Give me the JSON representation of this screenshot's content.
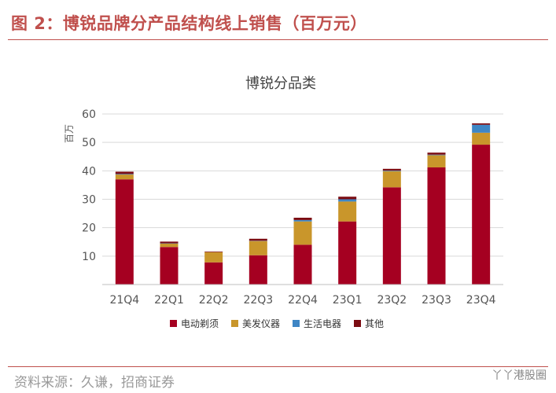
{
  "figure": {
    "title": "图 2：博锐品牌分产品结构线上销售（百万元）",
    "source": "资料来源：久谦，招商证券",
    "watermark": "丫丫港股圈"
  },
  "colors": {
    "accent": "#c0504d",
    "series": [
      "#a50021",
      "#c9962b",
      "#3e86c5",
      "#7b0c12"
    ]
  },
  "chart_data": {
    "type": "bar",
    "stacked": true,
    "title": "博锐分品类",
    "ylabel": "百万",
    "xlabel": "",
    "ylim": [
      0,
      60
    ],
    "yticks": [
      10,
      20,
      30,
      40,
      50,
      60
    ],
    "categories": [
      "21Q4",
      "22Q1",
      "22Q2",
      "22Q3",
      "22Q4",
      "23Q1",
      "23Q2",
      "23Q3",
      "23Q4"
    ],
    "series": [
      {
        "name": "电动剃须",
        "values": [
          37.0,
          13.2,
          7.8,
          10.3,
          14.0,
          22.2,
          34.2,
          41.2,
          49.2
        ]
      },
      {
        "name": "美发仪器",
        "values": [
          1.7,
          1.2,
          3.6,
          5.0,
          8.2,
          7.0,
          5.7,
          4.3,
          4.2
        ]
      },
      {
        "name": "生活电器",
        "values": [
          0.2,
          0.1,
          0.0,
          0.1,
          0.5,
          0.8,
          0.2,
          0.2,
          2.8
        ]
      },
      {
        "name": "其他",
        "values": [
          0.8,
          0.6,
          0.2,
          0.7,
          0.8,
          0.9,
          0.6,
          0.7,
          0.5
        ]
      }
    ],
    "grid": true,
    "legend_position": "bottom"
  }
}
